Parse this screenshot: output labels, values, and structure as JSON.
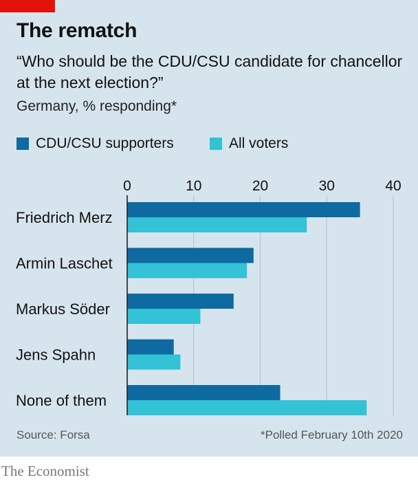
{
  "header": {
    "title": "The rematch",
    "subtitle": "“Who should be the CDU/CSU candidate for chancellor at the next election?”",
    "unit_note": "Germany, % responding*"
  },
  "footer": {
    "source": "Source: Forsa",
    "note": "*Polled February 10th 2020",
    "brand": "The Economist"
  },
  "colors": {
    "background": "#d6e4ed",
    "brand_red": "#e3120b",
    "series_dark": "#0e6aa0",
    "series_light": "#33c2d6",
    "grid": "#b8c6cf",
    "axis": "#222222"
  },
  "chart_data": {
    "type": "bar",
    "orientation": "horizontal",
    "categories": [
      "Friedrich Merz",
      "Armin Laschet",
      "Markus Söder",
      "Jens Spahn",
      "None of them"
    ],
    "series": [
      {
        "name": "CDU/CSU supporters",
        "color": "#0e6aa0",
        "values": [
          35,
          19,
          16,
          7,
          23
        ]
      },
      {
        "name": "All voters",
        "color": "#33c2d6",
        "values": [
          27,
          18,
          11,
          8,
          36
        ]
      }
    ],
    "xlim": [
      0,
      40
    ],
    "xticks": [
      0,
      10,
      20,
      30,
      40
    ],
    "tick_position": "top",
    "grid": true,
    "legend_position": "top-left"
  }
}
